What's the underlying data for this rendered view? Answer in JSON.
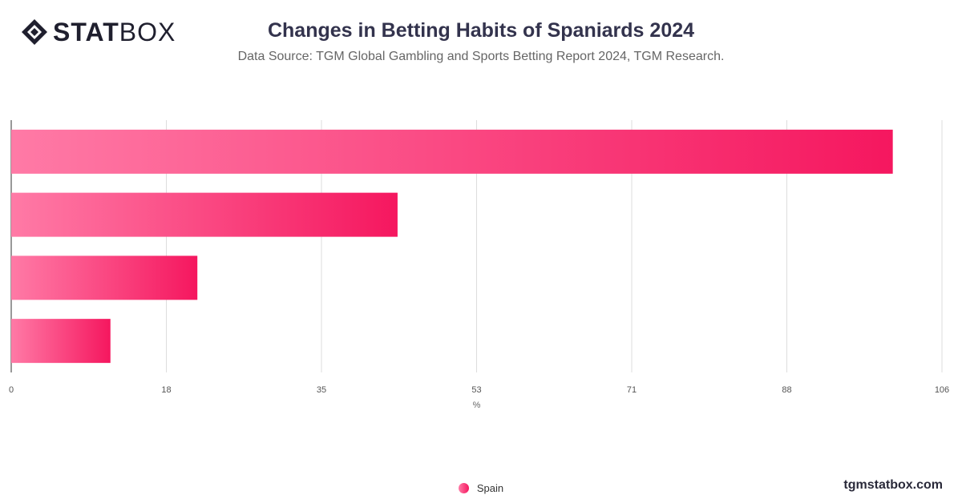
{
  "header": {
    "brand_bold": "STAT",
    "brand_light": "BOX",
    "title": "Changes in Betting Habits of Spaniards 2024",
    "subtitle": "Data Source: TGM Global Gambling and Sports Betting Report 2024, TGM Research."
  },
  "footer": {
    "watermark": "tgmstatbox.com"
  },
  "colors": {
    "bar_start": "#ff7aa6",
    "bar_end": "#f5175f",
    "grid": "#dddddd",
    "axis": "#333333"
  },
  "chart_data": {
    "type": "bar",
    "orientation": "horizontal",
    "categories": [
      "",
      "",
      "",
      ""
    ],
    "series": [
      {
        "name": "Spain",
        "values": [
          100.4,
          44.0,
          21.2,
          11.3
        ]
      }
    ],
    "xlabel": "%",
    "ylabel": "",
    "xlim": [
      0,
      106
    ],
    "xticks": [
      "0",
      "18",
      "35",
      "53",
      "71",
      "88",
      "106"
    ],
    "grid": true,
    "legend": "bottom-center"
  }
}
